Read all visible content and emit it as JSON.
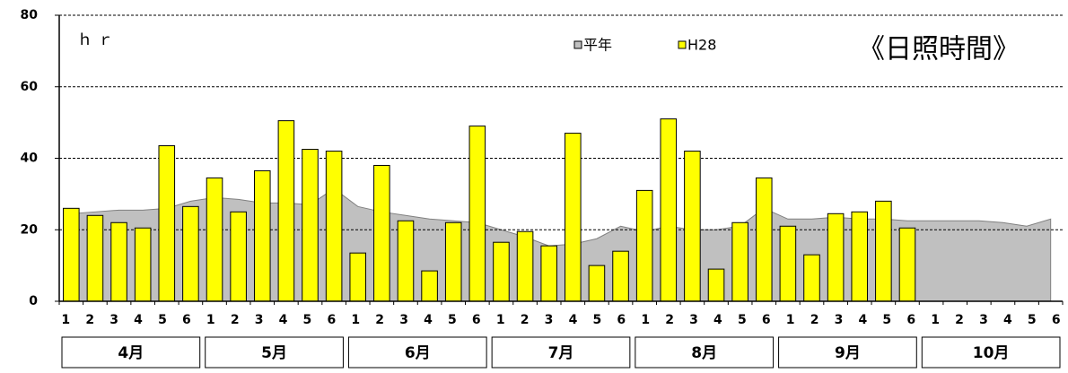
{
  "chart_data": {
    "type": "bar",
    "title": "《日照時間》",
    "unit": "ｈｒ",
    "categories": [
      "1",
      "2",
      "3",
      "4",
      "5",
      "6",
      "1",
      "2",
      "3",
      "4",
      "5",
      "6",
      "1",
      "2",
      "3",
      "4",
      "5",
      "6",
      "1",
      "2",
      "3",
      "4",
      "5",
      "6",
      "1",
      "2",
      "3",
      "4",
      "5",
      "6",
      "1",
      "2",
      "3",
      "4",
      "5",
      "6",
      "1",
      "2",
      "3",
      "4",
      "5",
      "6"
    ],
    "groups": [
      "4月",
      "5月",
      "6月",
      "7月",
      "8月",
      "9月",
      "10月"
    ],
    "series": [
      {
        "name": "平年",
        "type": "area",
        "color": "#c0c0c0",
        "values": [
          24.5,
          25,
          25.5,
          25.5,
          26,
          28,
          29,
          28.5,
          27.5,
          27.5,
          27,
          31.5,
          26.5,
          25,
          24,
          23,
          22.5,
          22,
          20,
          18,
          15.5,
          16,
          17.5,
          21,
          19.5,
          21,
          20,
          20,
          21,
          26,
          23,
          23,
          23.5,
          23,
          23,
          22.5,
          22.5,
          22.5,
          22.5,
          22,
          21,
          23
        ]
      },
      {
        "name": "H28",
        "type": "bar",
        "color": "#ffff00",
        "values": [
          26,
          24,
          22,
          20.5,
          43.5,
          26.5,
          34.5,
          25,
          36.5,
          50.5,
          42.5,
          42,
          13.5,
          38,
          22.5,
          8.5,
          22,
          49,
          16.5,
          19.5,
          15.5,
          47,
          10,
          14,
          31,
          51,
          42,
          9,
          22,
          34.5,
          21,
          13,
          24.5,
          25,
          28,
          20.5,
          null,
          null,
          null,
          null,
          null,
          null
        ]
      }
    ],
    "ylim": [
      0,
      80
    ],
    "yticks": [
      0,
      20,
      40,
      60,
      80
    ],
    "grid": true
  }
}
